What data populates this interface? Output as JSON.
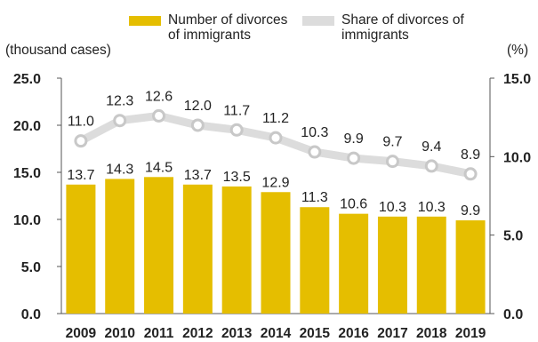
{
  "chart_data": {
    "type": "bar+line",
    "categories": [
      "2009",
      "2010",
      "2011",
      "2012",
      "2013",
      "2014",
      "2015",
      "2016",
      "2017",
      "2018",
      "2019"
    ],
    "series": [
      {
        "name": "Number of divorces of immigrants",
        "type": "bar",
        "axis": "left",
        "values": [
          13.7,
          14.3,
          14.5,
          13.7,
          13.5,
          12.9,
          11.3,
          10.6,
          10.3,
          10.3,
          9.9
        ],
        "color": "#E5BE00"
      },
      {
        "name": "Share of divorces of immigrants",
        "type": "line",
        "axis": "right",
        "values": [
          11.0,
          12.3,
          12.6,
          12.0,
          11.7,
          11.2,
          10.3,
          9.9,
          9.7,
          9.4,
          8.9
        ],
        "color": "#DCDCDC"
      }
    ],
    "left_axis": {
      "label": "(thousand cases)",
      "ylim": [
        0,
        25
      ],
      "ticks": [
        "0.0",
        "5.0",
        "10.0",
        "15.0",
        "20.0",
        "25.0"
      ]
    },
    "right_axis": {
      "label": "(%)",
      "ylim": [
        0,
        15
      ],
      "ticks": [
        "0.0",
        "5.0",
        "10.0",
        "15.0"
      ]
    },
    "grid": false,
    "legend_position": "top"
  },
  "legend": {
    "bar_label": "Number of divorces of immigrants",
    "line_label": "Share of divorces of immigrants"
  },
  "axis_labels": {
    "left_unit": "(thousand cases)",
    "right_unit": "(%)"
  }
}
